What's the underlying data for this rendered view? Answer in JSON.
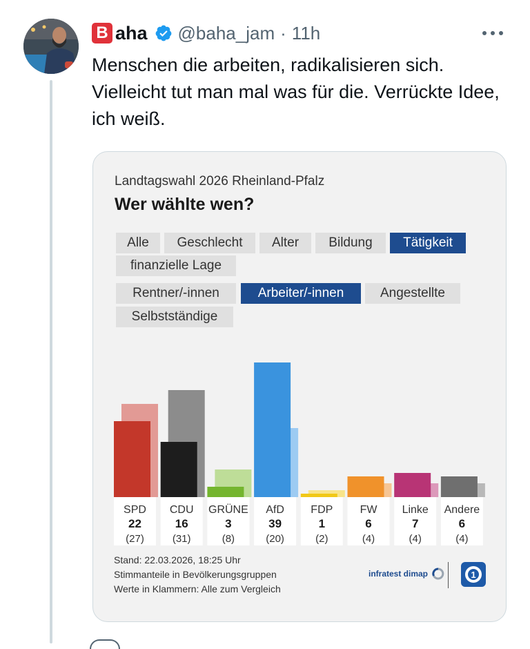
{
  "tweet": {
    "brand_letter": "B",
    "display_name": "aha",
    "handle": "@baha_jam",
    "separator": "·",
    "time": "11h",
    "text": "Menschen die arbeiten, radikalisieren sich. Vielleicht tut man mal was für die. Verrückte Idee, ich weiß."
  },
  "card": {
    "subtitle": "Landtagswahl 2026 Rheinland-Pfalz",
    "title": "Wer wählte wen?",
    "filter_tabs": [
      {
        "label": "Alle",
        "active": false
      },
      {
        "label": "Geschlecht",
        "active": false
      },
      {
        "label": "Alter",
        "active": false
      },
      {
        "label": "Bildung",
        "active": false
      },
      {
        "label": "Tätigkeit",
        "active": true
      },
      {
        "label": "finanzielle Lage",
        "active": false
      }
    ],
    "group_tabs": [
      {
        "label": "Rentner/-innen",
        "active": false
      },
      {
        "label": "Arbeiter/-innen",
        "active": true
      },
      {
        "label": "Angestellte",
        "active": false
      },
      {
        "label": "Selbstständige",
        "active": false
      }
    ],
    "footnotes": [
      "Stand: 22.03.2026, 18:25 Uhr",
      "Stimmanteile in Bevölkerungsgruppen",
      "Werte in Klammern: Alle zum Vergleich"
    ],
    "source_logo": "infratest dimap"
  },
  "colors": {
    "accent": "#1e4c8f",
    "verified": "#1d9bf0",
    "brand": "#e0323a"
  },
  "chart_data": {
    "type": "bar",
    "title": "Wer wählte wen?",
    "categories": [
      "SPD",
      "CDU",
      "GRÜNE",
      "AfD",
      "FDP",
      "FW",
      "Linke",
      "Andere"
    ],
    "series": [
      {
        "name": "Arbeiter/-innen",
        "values": [
          22,
          16,
          3,
          39,
          1,
          6,
          7,
          6
        ]
      },
      {
        "name": "Alle",
        "values": [
          27,
          31,
          8,
          20,
          2,
          4,
          4,
          4
        ]
      }
    ],
    "value_labels": [
      "22",
      "16",
      "3",
      "39",
      "1",
      "6",
      "7",
      "6"
    ],
    "comparison_labels": [
      "(27)",
      "(31)",
      "(8)",
      "(20)",
      "(2)",
      "(4)",
      "(4)",
      "(4)"
    ],
    "party_colors": [
      "#c3372a",
      "#1d1d1d",
      "#74b52e",
      "#3a93de",
      "#f1c817",
      "#f0922b",
      "#b83475",
      "#6f6f6f"
    ],
    "party_light_colors": [
      "#e29a95",
      "#8c8c8c",
      "#bedd98",
      "#9dcbf2",
      "#f8e48a",
      "#f6c594",
      "#dc99ba",
      "#b8b8b8"
    ],
    "ylim": [
      0,
      40
    ]
  }
}
